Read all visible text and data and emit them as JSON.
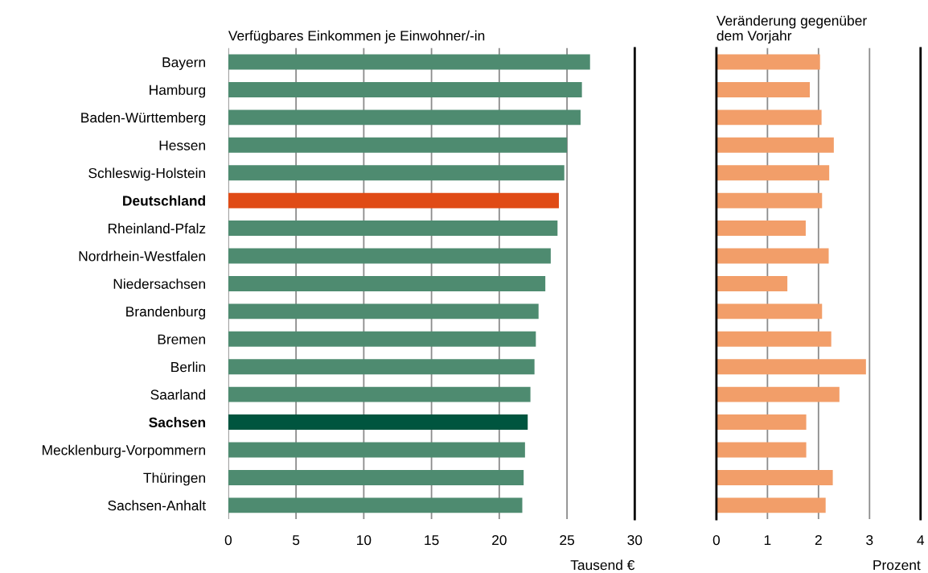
{
  "chart_data": [
    {
      "type": "bar",
      "orientation": "horizontal",
      "title": "Verfügbares Einkommen je Einwohner/-in",
      "xlabel": "Tausend €",
      "categories": [
        "Bayern",
        "Hamburg",
        "Baden-Württemberg",
        "Hessen",
        "Schleswig-Holstein",
        "Deutschland",
        "Rheinland-Pfalz",
        "Nordrhein-Westfalen",
        "Niedersachsen",
        "Brandenburg",
        "Bremen",
        "Berlin",
        "Saarland",
        "Sachsen",
        "Mecklenburg-Vorpommern",
        "Thüringen",
        "Sachsen-Anhalt"
      ],
      "values": [
        26.7,
        26.1,
        26.0,
        25.0,
        24.8,
        24.4,
        24.3,
        23.8,
        23.4,
        22.9,
        22.7,
        22.6,
        22.3,
        22.1,
        21.9,
        21.8,
        21.7
      ],
      "colors": [
        "#4e8b70",
        "#4e8b70",
        "#4e8b70",
        "#4e8b70",
        "#4e8b70",
        "#e04b16",
        "#4e8b70",
        "#4e8b70",
        "#4e8b70",
        "#4e8b70",
        "#4e8b70",
        "#4e8b70",
        "#4e8b70",
        "#00553f",
        "#4e8b70",
        "#4e8b70",
        "#4e8b70"
      ],
      "xlim": [
        0,
        30
      ],
      "xticks": [
        0,
        5,
        10,
        15,
        20,
        25,
        30
      ],
      "grid": "x"
    },
    {
      "type": "bar",
      "orientation": "horizontal",
      "title": "Veränderung gegenüber\ndem Vorjahr",
      "xlabel": "Prozent",
      "categories": [
        null,
        null,
        null,
        null,
        null,
        null,
        null,
        null,
        null,
        null,
        null,
        null,
        null,
        null,
        null,
        null,
        null
      ],
      "values": [
        2.03,
        1.83,
        2.06,
        2.3,
        2.21,
        2.07,
        1.75,
        2.2,
        1.39,
        2.07,
        2.25,
        2.93,
        2.41,
        1.76,
        1.76,
        2.28,
        2.14
      ],
      "colors": [
        "#f29e69",
        "#f29e69",
        "#f29e69",
        "#f29e69",
        "#f29e69",
        "#f29e69",
        "#f29e69",
        "#f29e69",
        "#f29e69",
        "#f29e69",
        "#f29e69",
        "#f29e69",
        "#f29e69",
        "#f29e69",
        "#f29e69",
        "#f29e69",
        "#f29e69"
      ],
      "xlim": [
        0,
        4
      ],
      "xticks": [
        0,
        1,
        2,
        3,
        4
      ],
      "grid": "x",
      "tick_labels": "x"
    }
  ]
}
